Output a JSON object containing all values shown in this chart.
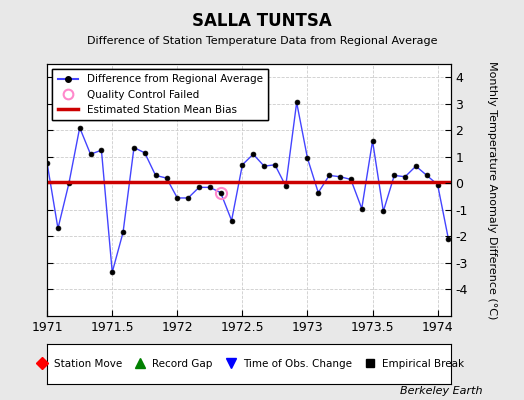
{
  "title": "SALLA TUNTSA",
  "subtitle": "Difference of Station Temperature Data from Regional Average",
  "ylabel_right": "Monthly Temperature Anomaly Difference (°C)",
  "background_color": "#e8e8e8",
  "plot_bg_color": "#ffffff",
  "xlim": [
    1971.0,
    1974.1
  ],
  "ylim": [
    -5,
    4.5
  ],
  "yticks": [
    -4,
    -3,
    -2,
    -1,
    0,
    1,
    2,
    3,
    4
  ],
  "xticks": [
    1971,
    1971.5,
    1972,
    1972.5,
    1973,
    1973.5,
    1974
  ],
  "xtick_labels": [
    "1971",
    "1971.5",
    "1972",
    "1972.5",
    "1973",
    "1973.5",
    "1974"
  ],
  "bias_line_y": 0.05,
  "bias_color": "#cc0000",
  "line_color": "#4444ff",
  "line_x": [
    1971.0,
    1971.083,
    1971.167,
    1971.25,
    1971.333,
    1971.417,
    1971.5,
    1971.583,
    1971.667,
    1971.75,
    1971.833,
    1971.917,
    1972.0,
    1972.083,
    1972.167,
    1972.25,
    1972.333,
    1972.417,
    1972.5,
    1972.583,
    1972.667,
    1972.75,
    1972.833,
    1972.917,
    1973.0,
    1973.083,
    1973.167,
    1973.25,
    1973.333,
    1973.417,
    1973.5,
    1973.583,
    1973.667,
    1973.75,
    1973.833,
    1973.917,
    1974.0,
    1974.083
  ],
  "line_y": [
    0.75,
    -1.7,
    0.0,
    2.1,
    1.1,
    1.25,
    -3.35,
    -1.85,
    1.35,
    1.15,
    0.3,
    0.2,
    -0.55,
    -0.55,
    -0.15,
    -0.15,
    -0.35,
    -1.4,
    0.7,
    1.1,
    0.65,
    0.7,
    -0.1,
    3.05,
    0.95,
    -0.35,
    0.3,
    0.25,
    0.15,
    -0.95,
    1.6,
    -1.05,
    0.3,
    0.25,
    0.65,
    0.3,
    -0.05,
    -2.1
  ],
  "qc_failed_x": [
    1972.333
  ],
  "qc_failed_y": [
    -0.35
  ],
  "footer_text": "Berkeley Earth",
  "grid_color": "#cccccc",
  "grid_linestyle": "--"
}
